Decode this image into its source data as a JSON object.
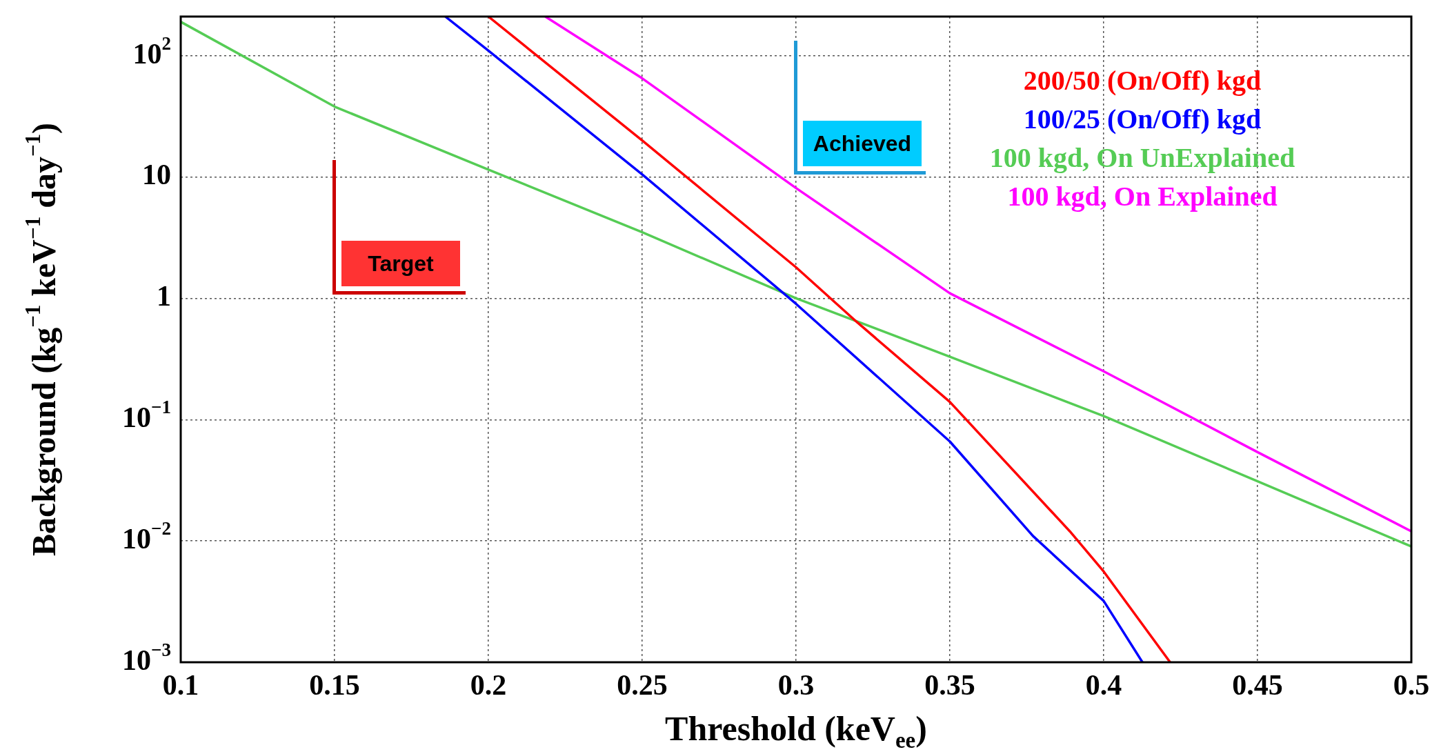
{
  "chart_data": {
    "type": "line",
    "xlabel": "Threshold (keV$_{ee}$)",
    "ylabel": "Background (kg$^{−1}$ keV$^{−1}$ day$^{−1}$)",
    "log": "y",
    "grid": true,
    "legend": "top right",
    "marker": "none",
    "line_style": "solid",
    "xlim": [
      0.1,
      0.5
    ],
    "xticks": [
      0.1,
      0.15,
      0.2,
      0.25,
      0.3,
      0.35,
      0.4,
      0.45,
      0.5
    ],
    "ylim": [
      0.001,
      210
    ],
    "yticks": [
      {
        "value": 0.001,
        "label": "10$^{−3}$"
      },
      {
        "value": 0.01,
        "label": "10$^{−2}$"
      },
      {
        "value": 0.1,
        "label": "10$^{−1}$"
      },
      1,
      10,
      {
        "value": 100,
        "label": "10$^{2}$"
      }
    ],
    "series": [
      {
        "name": "200/50 (On/Off) kgd",
        "color": "#ff0000",
        "x": [
          0.2,
          0.25,
          0.3,
          0.32,
          0.35,
          0.389,
          0.4,
          0.4216
        ],
        "values": [
          210,
          20,
          1.8,
          0.63,
          0.14,
          0.012,
          0.0056,
          0.001
        ]
      },
      {
        "name": "100/25 (On/Off) kgd",
        "color": "#0000ff",
        "x": [
          0.186,
          0.2,
          0.25,
          0.3,
          0.35,
          0.377,
          0.4,
          0.4126
        ],
        "values": [
          210,
          110,
          10.5,
          0.9,
          0.066,
          0.011,
          0.0032,
          0.001
        ]
      },
      {
        "name": "100 kgd, On UnExplained",
        "color": "#55cc55",
        "x": [
          0.1,
          0.15,
          0.2,
          0.25,
          0.3,
          0.35,
          0.4,
          0.45,
          0.5
        ],
        "values": [
          190,
          38,
          11.5,
          3.5,
          1.0,
          0.33,
          0.107,
          0.031,
          0.009
        ]
      },
      {
        "name": "100 kgd, On Explained",
        "color": "#ff00ff",
        "x": [
          0.2185,
          0.25,
          0.3,
          0.35,
          0.4,
          0.45,
          0.5
        ],
        "values": [
          210,
          65,
          8.1,
          1.1,
          0.25,
          0.054,
          0.012
        ]
      }
    ],
    "annotations": [
      "Target",
      "Achieved"
    ]
  }
}
